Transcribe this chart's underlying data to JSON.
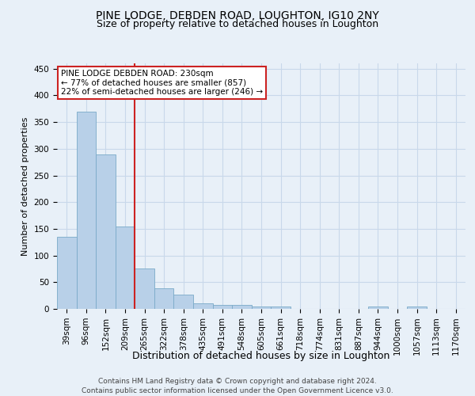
{
  "title": "PINE LODGE, DEBDEN ROAD, LOUGHTON, IG10 2NY",
  "subtitle": "Size of property relative to detached houses in Loughton",
  "xlabel": "Distribution of detached houses by size in Loughton",
  "ylabel": "Number of detached properties",
  "footer_line1": "Contains HM Land Registry data © Crown copyright and database right 2024.",
  "footer_line2": "Contains public sector information licensed under the Open Government Licence v3.0.",
  "bar_color": "#b8d0e8",
  "bar_edge_color": "#7aaac8",
  "grid_color": "#c8d8ea",
  "background_color": "#e8f0f8",
  "vline_color": "#cc2222",
  "vline_position": 3.5,
  "annotation_line1": "PINE LODGE DEBDEN ROAD: 230sqm",
  "annotation_line2": "← 77% of detached houses are smaller (857)",
  "annotation_line3": "22% of semi-detached houses are larger (246) →",
  "annotation_box_color": "#ffffff",
  "annotation_box_edge": "#cc2222",
  "bins": [
    "39sqm",
    "96sqm",
    "152sqm",
    "209sqm",
    "265sqm",
    "322sqm",
    "378sqm",
    "435sqm",
    "491sqm",
    "548sqm",
    "605sqm",
    "661sqm",
    "718sqm",
    "774sqm",
    "831sqm",
    "887sqm",
    "944sqm",
    "1000sqm",
    "1057sqm",
    "1113sqm",
    "1170sqm"
  ],
  "values": [
    135,
    370,
    289,
    155,
    75,
    38,
    27,
    10,
    7,
    7,
    4,
    4,
    0,
    0,
    0,
    0,
    4,
    0,
    4,
    0,
    0
  ],
  "ylim": [
    0,
    460
  ],
  "yticks": [
    0,
    50,
    100,
    150,
    200,
    250,
    300,
    350,
    400,
    450
  ],
  "title_fontsize": 10,
  "subtitle_fontsize": 9,
  "ylabel_fontsize": 8,
  "xlabel_fontsize": 9,
  "tick_fontsize": 7.5,
  "footer_fontsize": 6.5
}
